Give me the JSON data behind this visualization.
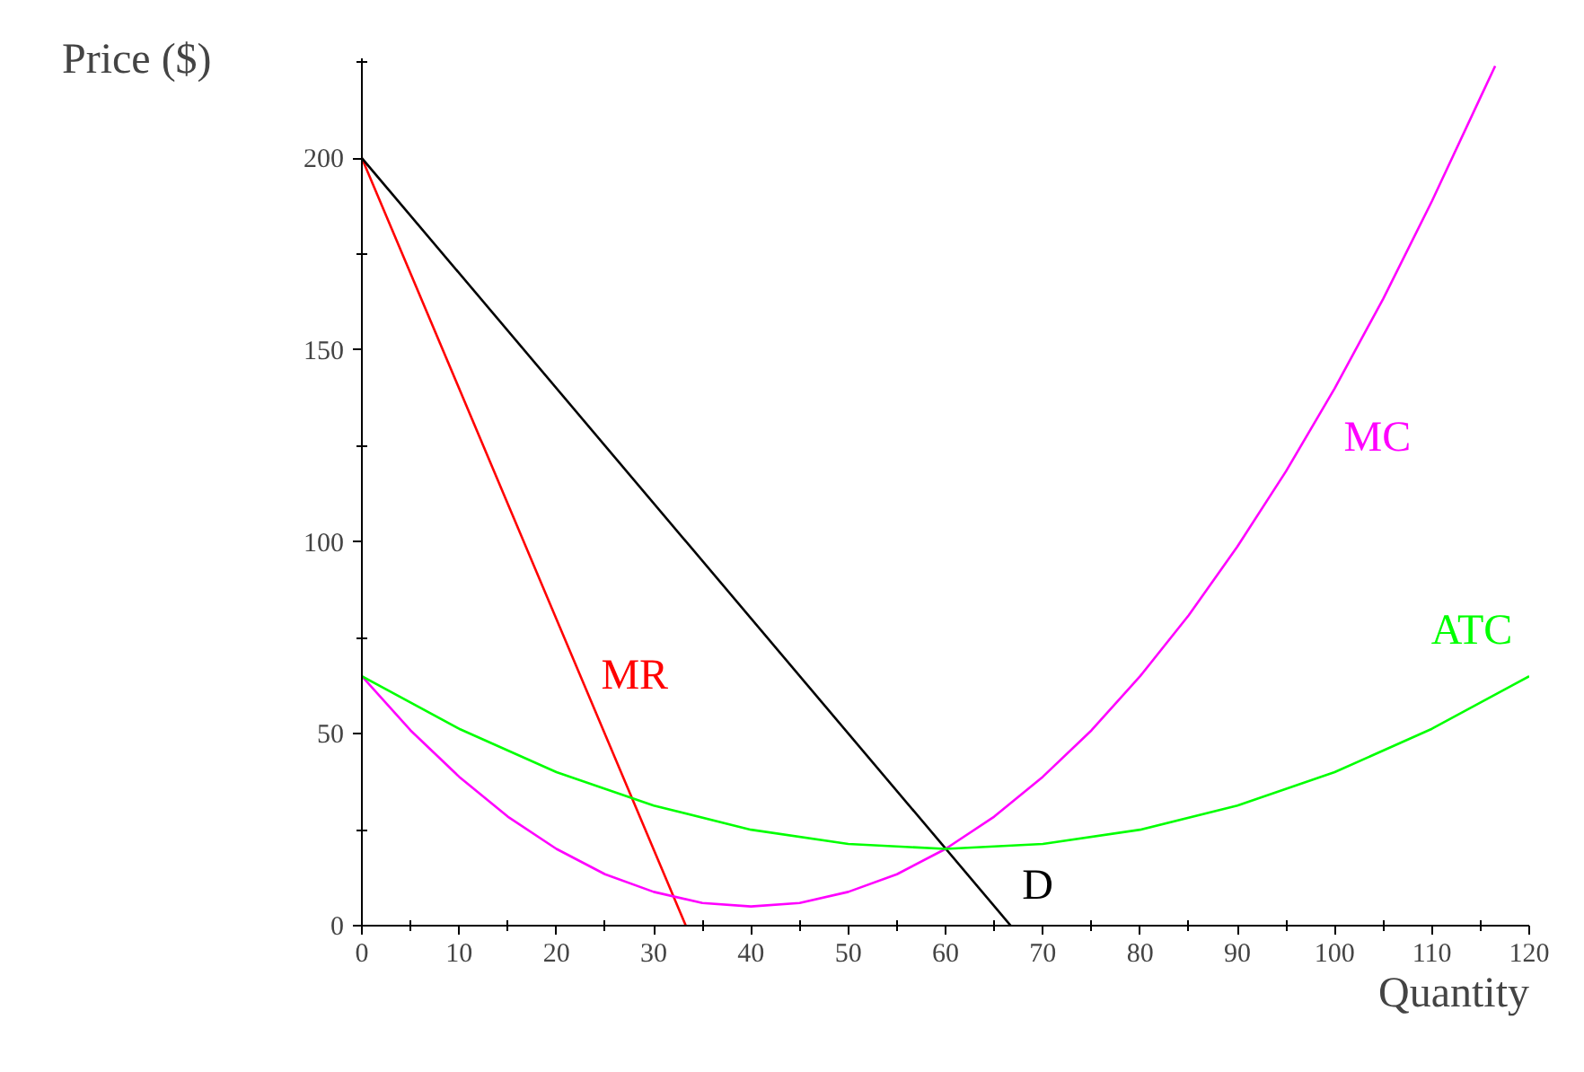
{
  "chart_data": {
    "type": "line",
    "xlabel": "Quantity",
    "ylabel": "Price ($)",
    "xlim": [
      0,
      120
    ],
    "ylim": [
      0,
      226
    ],
    "xticks": [
      0,
      10,
      20,
      30,
      40,
      50,
      60,
      70,
      80,
      90,
      100,
      110,
      120
    ],
    "yticks": [
      0,
      50,
      100,
      150,
      200
    ],
    "grid": false,
    "marker": "none",
    "line_style": "solid",
    "series": [
      {
        "color": "#ff0000",
        "x": [
          0,
          33.3
        ],
        "values": [
          200,
          0
        ]
      },
      {
        "color": "#000000",
        "x": [
          0,
          66.7
        ],
        "values": [
          200,
          0
        ]
      },
      {
        "color": "#ff00ff",
        "x": [
          0,
          5,
          10,
          15,
          20,
          25,
          30,
          35,
          40,
          45,
          50,
          55,
          60,
          65,
          70,
          75,
          80,
          85,
          90,
          95,
          100,
          105,
          110,
          115,
          116.5
        ],
        "values": [
          65,
          50.9,
          38.8,
          28.4,
          20,
          13.4,
          8.8,
          5.9,
          5,
          5.9,
          8.8,
          13.4,
          20,
          28.4,
          38.8,
          50.9,
          65,
          80.9,
          98.8,
          118.4,
          140,
          163.4,
          188.8,
          215.9,
          224
        ]
      },
      {
        "color": "#00ff00",
        "x": [
          0,
          10,
          20,
          30,
          40,
          50,
          60,
          70,
          80,
          90,
          100,
          110,
          120
        ],
        "values": [
          65,
          51.3,
          40,
          31.3,
          25,
          21.3,
          20,
          21.3,
          25,
          31.3,
          40,
          51.3,
          65
        ]
      }
    ],
    "annotations": [
      {
        "text": "MR",
        "x": 22.5,
        "y": 65
      },
      {
        "text": "D",
        "x": 66.7,
        "y": 0
      },
      {
        "text": "MC",
        "x": 97,
        "y": 127
      },
      {
        "text": "ATC",
        "x": 120,
        "y": 65
      }
    ]
  }
}
